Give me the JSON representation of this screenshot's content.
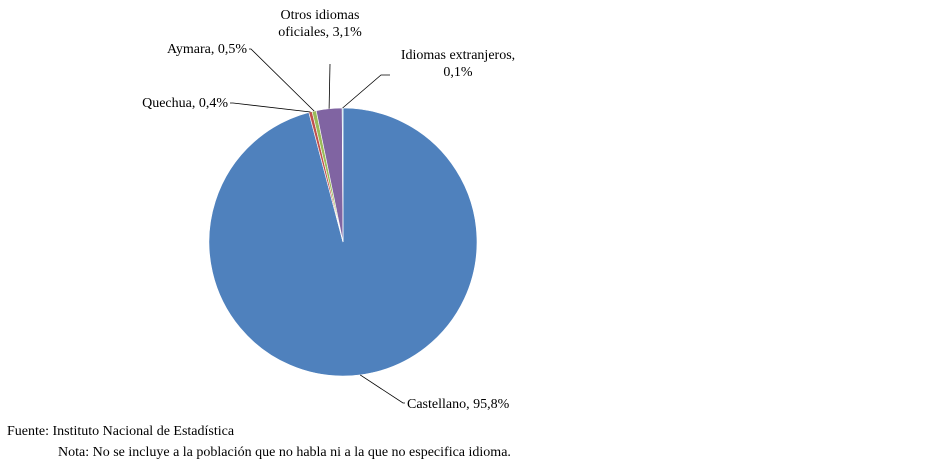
{
  "chart_data": {
    "type": "pie",
    "title": "",
    "slices": [
      {
        "label_lines": [
          "Castellano, 95,8%"
        ],
        "category": "Castellano",
        "value": 95.8,
        "color": "#4F81BD"
      },
      {
        "label_lines": [
          "Quechua, 0,4%"
        ],
        "category": "Quechua",
        "value": 0.4,
        "color": "#C0504D"
      },
      {
        "label_lines": [
          "Aymara, 0,5%"
        ],
        "category": "Aymara",
        "value": 0.5,
        "color": "#9BBB59"
      },
      {
        "label_lines": [
          "Otros idiomas",
          "oficiales, 3,1%"
        ],
        "category": "Otros idiomas oficiales",
        "value": 3.1,
        "color": "#8064A2"
      },
      {
        "label_lines": [
          "Idiomas extranjeros,",
          "0,1%"
        ],
        "category": "Idiomas extranjeros",
        "value": 0.1,
        "color": "#4BACC6"
      }
    ],
    "legend": "none",
    "data_labels": "outside with leader lines"
  },
  "source": "Fuente: Instituto Nacional de Estadística",
  "note": "Nota: No se incluye a la población que no habla ni a la que no especifica idioma."
}
